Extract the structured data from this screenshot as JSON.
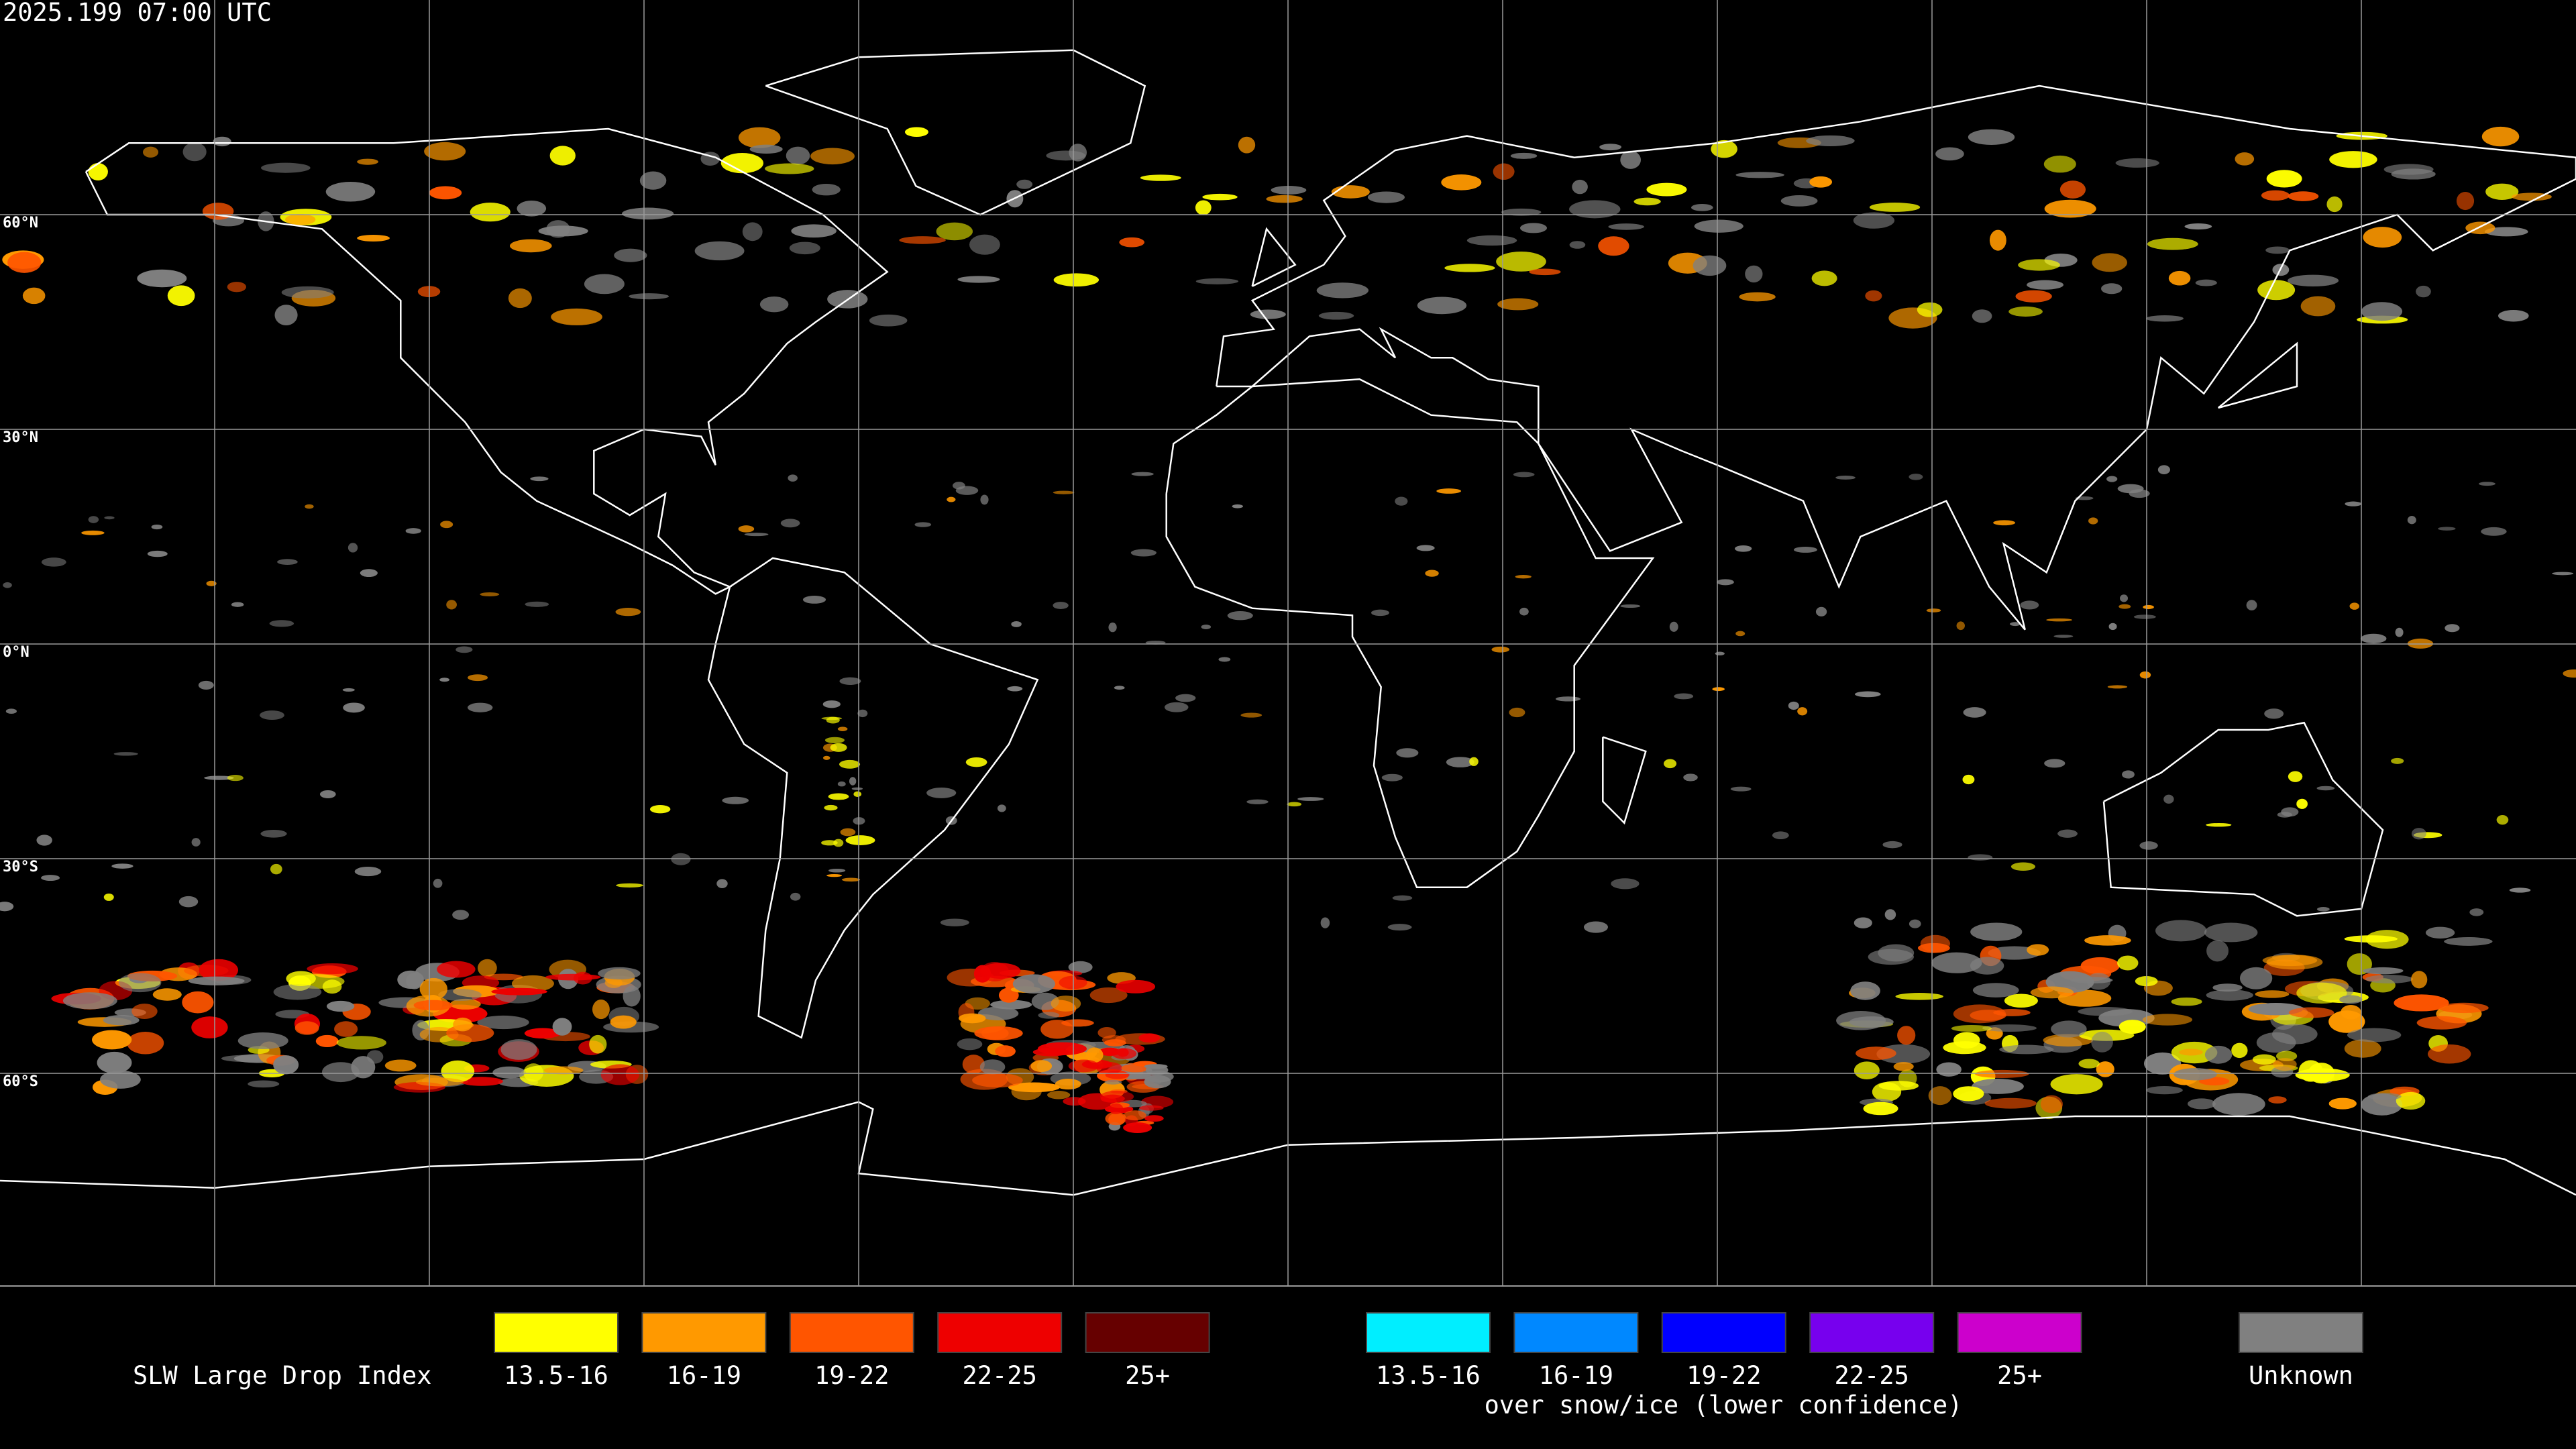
{
  "timestamp": "2025.199 07:00 UTC",
  "latitude_labels": [
    "60°N",
    "30°N",
    "0°N",
    "30°S",
    "60°S"
  ],
  "legend": {
    "title": "SLW Large Drop Index",
    "liquid": [
      {
        "label": "13.5-16",
        "color": "#ffff00"
      },
      {
        "label": "16-19",
        "color": "#ff9900"
      },
      {
        "label": "19-22",
        "color": "#ff5500"
      },
      {
        "label": "22-25",
        "color": "#ee0000"
      },
      {
        "label": "25+",
        "color": "#660000"
      }
    ],
    "snow_ice": {
      "note": "over snow/ice (lower confidence)",
      "items": [
        {
          "label": "13.5-16",
          "color": "#00eeff"
        },
        {
          "label": "16-19",
          "color": "#0088ff"
        },
        {
          "label": "19-22",
          "color": "#0000ff"
        },
        {
          "label": "22-25",
          "color": "#7700ee"
        },
        {
          "label": "25+",
          "color": "#cc00cc"
        }
      ]
    },
    "unknown": {
      "label": "Unknown",
      "color": "#808080"
    }
  }
}
